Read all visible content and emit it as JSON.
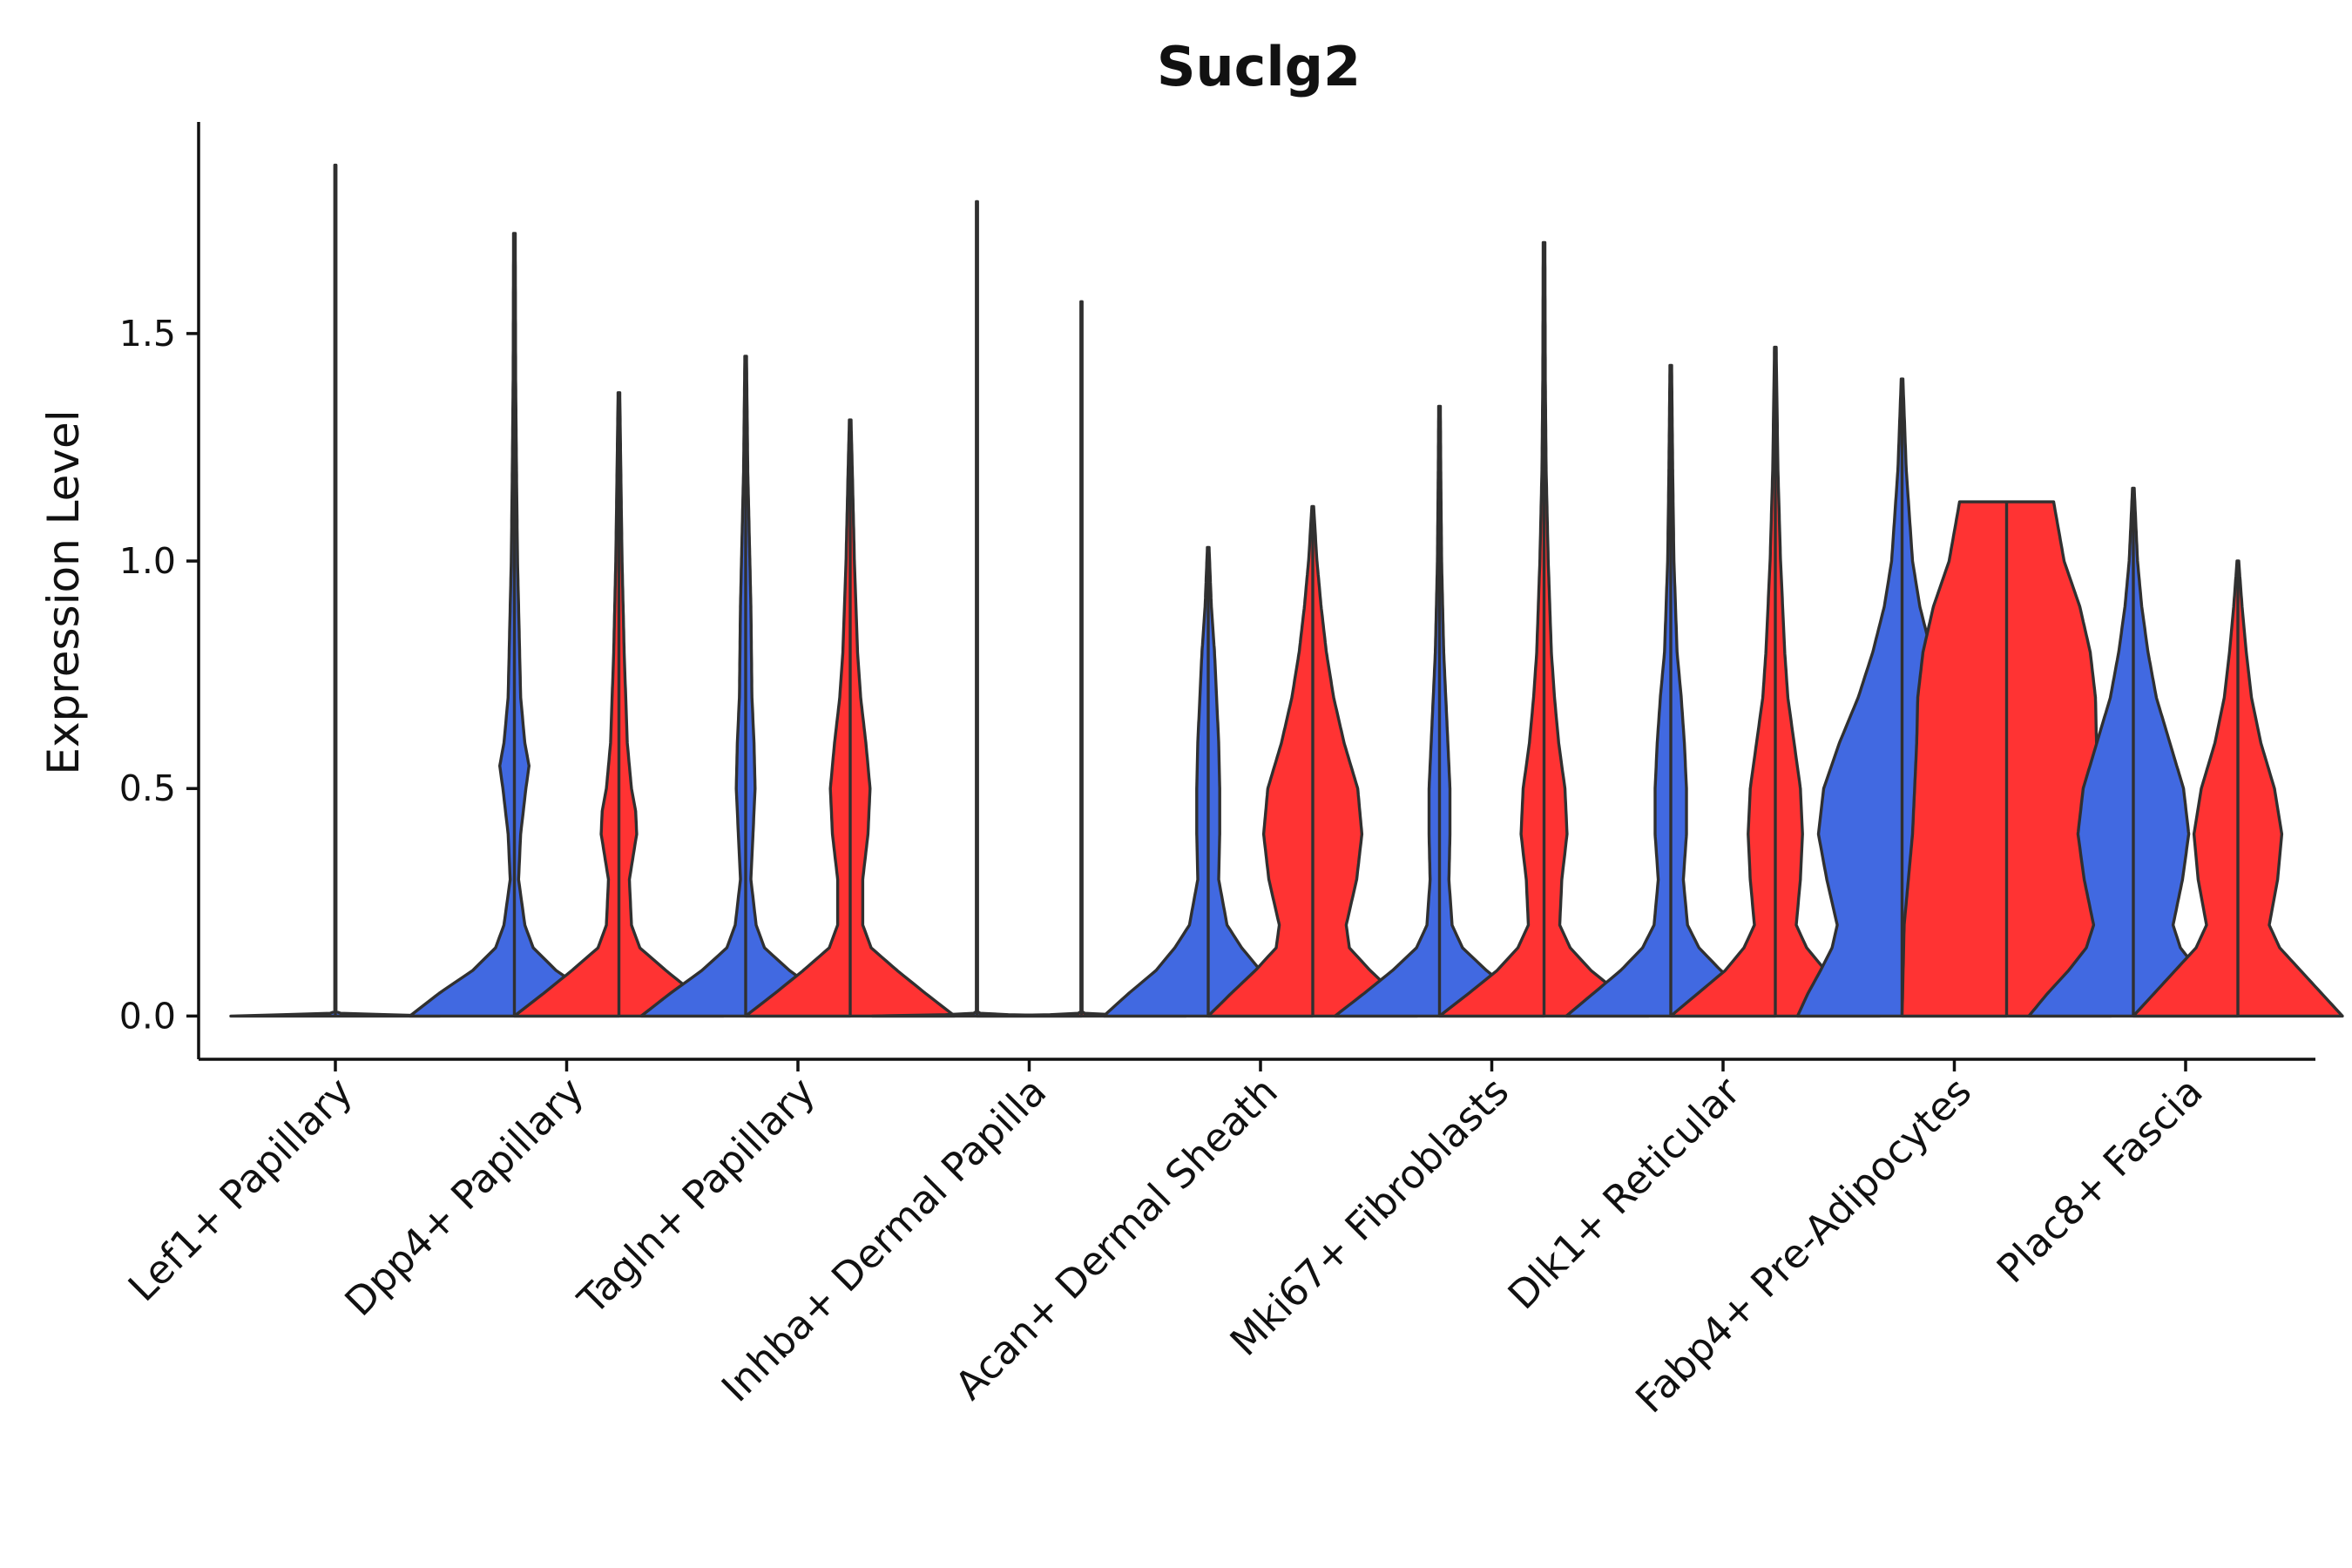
{
  "chart_data": {
    "type": "violin",
    "title": "Suclg2",
    "xlabel": "",
    "ylabel": "Expression Level",
    "ylim": [
      -0.095,
      1.965
    ],
    "yticks": [
      0.0,
      0.5,
      1.0,
      1.5
    ],
    "ytick_labels": [
      "0.0",
      "0.5",
      "1.0",
      "1.5"
    ],
    "grid": false,
    "legend": "none",
    "colors": {
      "group_a": "#4169E1",
      "group_b": "#FF3333",
      "outline": "#303030"
    },
    "categories": [
      "Lef1+ Papillary",
      "Dpp4+ Papillary",
      "Tagln+ Papillary",
      "Inhba+ Dermal Papilla",
      "Acan+ Dermal Sheath",
      "Mki67+ Fibroblasts",
      "Dlk1+ Reticular",
      "Fabp4+ Pre-Adipocytes",
      "Plac8+ Fascia"
    ],
    "violins": [
      {
        "category": "Lef1+ Papillary",
        "split": false,
        "max": 1.87,
        "density": [
          [
            0,
            1
          ],
          [
            0.003,
            0.5
          ],
          [
            0.006,
            0.05
          ],
          [
            0.01,
            0.006
          ],
          [
            1.87,
            0.006
          ]
        ]
      },
      {
        "category": "Dpp4+ Papillary",
        "split": true,
        "left": {
          "max": 1.72,
          "density": [
            [
              0,
              1
            ],
            [
              0.05,
              0.72
            ],
            [
              0.1,
              0.4
            ],
            [
              0.15,
              0.18
            ],
            [
              0.2,
              0.1
            ],
            [
              0.3,
              0.04
            ],
            [
              0.4,
              0.06
            ],
            [
              0.5,
              0.11
            ],
            [
              0.55,
              0.14
            ],
            [
              0.6,
              0.1
            ],
            [
              0.7,
              0.06
            ],
            [
              0.8,
              0.05
            ],
            [
              1.0,
              0.03
            ],
            [
              1.2,
              0.02
            ],
            [
              1.4,
              0.012
            ],
            [
              1.72,
              0.008
            ]
          ]
        },
        "right": {
          "max": 1.37,
          "density": [
            [
              0,
              1
            ],
            [
              0.05,
              0.72
            ],
            [
              0.1,
              0.45
            ],
            [
              0.15,
              0.2
            ],
            [
              0.2,
              0.12
            ],
            [
              0.3,
              0.1
            ],
            [
              0.4,
              0.17
            ],
            [
              0.45,
              0.16
            ],
            [
              0.5,
              0.12
            ],
            [
              0.6,
              0.08
            ],
            [
              0.8,
              0.05
            ],
            [
              1.0,
              0.03
            ],
            [
              1.2,
              0.018
            ],
            [
              1.37,
              0.008
            ]
          ]
        }
      },
      {
        "category": "Tagln+ Papillary",
        "split": true,
        "left": {
          "max": 1.45,
          "density": [
            [
              0,
              1
            ],
            [
              0.05,
              0.72
            ],
            [
              0.1,
              0.42
            ],
            [
              0.15,
              0.18
            ],
            [
              0.2,
              0.1
            ],
            [
              0.3,
              0.05
            ],
            [
              0.4,
              0.07
            ],
            [
              0.5,
              0.09
            ],
            [
              0.6,
              0.08
            ],
            [
              0.7,
              0.06
            ],
            [
              0.9,
              0.05
            ],
            [
              1.0,
              0.04
            ],
            [
              1.2,
              0.02
            ],
            [
              1.45,
              0.008
            ]
          ]
        },
        "right": {
          "max": 1.31,
          "density": [
            [
              0,
              1
            ],
            [
              0.05,
              0.72
            ],
            [
              0.1,
              0.45
            ],
            [
              0.15,
              0.2
            ],
            [
              0.2,
              0.12
            ],
            [
              0.3,
              0.12
            ],
            [
              0.4,
              0.17
            ],
            [
              0.5,
              0.19
            ],
            [
              0.6,
              0.15
            ],
            [
              0.7,
              0.1
            ],
            [
              0.8,
              0.07
            ],
            [
              1.0,
              0.04
            ],
            [
              1.2,
              0.02
            ],
            [
              1.31,
              0.008
            ]
          ]
        }
      },
      {
        "category": "Inhba+ Dermal Papilla",
        "split": true,
        "left": {
          "max": 1.79,
          "density": [
            [
              0,
              1
            ],
            [
              0.003,
              0.3
            ],
            [
              0.006,
              0.03
            ],
            [
              0.01,
              0.006
            ],
            [
              1.79,
              0.006
            ]
          ]
        },
        "right": {
          "max": 1.57,
          "density": [
            [
              0,
              1
            ],
            [
              0.003,
              0.3
            ],
            [
              0.006,
              0.03
            ],
            [
              0.01,
              0.006
            ],
            [
              1.57,
              0.006
            ]
          ]
        }
      },
      {
        "category": "Acan+ Dermal Sheath",
        "split": true,
        "left": {
          "max": 1.03,
          "density": [
            [
              0,
              1
            ],
            [
              0.05,
              0.76
            ],
            [
              0.1,
              0.5
            ],
            [
              0.15,
              0.32
            ],
            [
              0.2,
              0.18
            ],
            [
              0.3,
              0.1
            ],
            [
              0.4,
              0.11
            ],
            [
              0.5,
              0.11
            ],
            [
              0.6,
              0.1
            ],
            [
              0.7,
              0.08
            ],
            [
              0.8,
              0.06
            ],
            [
              0.9,
              0.03
            ],
            [
              1.03,
              0.008
            ]
          ]
        },
        "right": {
          "max": 1.12,
          "density": [
            [
              0,
              1
            ],
            [
              0.05,
              0.78
            ],
            [
              0.1,
              0.55
            ],
            [
              0.15,
              0.35
            ],
            [
              0.2,
              0.32
            ],
            [
              0.3,
              0.42
            ],
            [
              0.4,
              0.47
            ],
            [
              0.5,
              0.43
            ],
            [
              0.6,
              0.3
            ],
            [
              0.7,
              0.2
            ],
            [
              0.8,
              0.13
            ],
            [
              0.9,
              0.08
            ],
            [
              1.0,
              0.04
            ],
            [
              1.12,
              0.008
            ]
          ]
        }
      },
      {
        "category": "Mki67+ Fibroblasts",
        "split": true,
        "left": {
          "max": 1.34,
          "density": [
            [
              0,
              1
            ],
            [
              0.05,
              0.72
            ],
            [
              0.1,
              0.45
            ],
            [
              0.15,
              0.22
            ],
            [
              0.2,
              0.12
            ],
            [
              0.3,
              0.09
            ],
            [
              0.4,
              0.1
            ],
            [
              0.5,
              0.1
            ],
            [
              0.6,
              0.08
            ],
            [
              0.7,
              0.06
            ],
            [
              0.8,
              0.04
            ],
            [
              1.0,
              0.02
            ],
            [
              1.2,
              0.012
            ],
            [
              1.34,
              0.008
            ]
          ]
        },
        "right": {
          "max": 1.7,
          "density": [
            [
              0,
              1
            ],
            [
              0.05,
              0.72
            ],
            [
              0.1,
              0.45
            ],
            [
              0.15,
              0.25
            ],
            [
              0.2,
              0.15
            ],
            [
              0.3,
              0.17
            ],
            [
              0.4,
              0.22
            ],
            [
              0.5,
              0.2
            ],
            [
              0.6,
              0.14
            ],
            [
              0.7,
              0.1
            ],
            [
              0.8,
              0.07
            ],
            [
              1.0,
              0.04
            ],
            [
              1.2,
              0.02
            ],
            [
              1.4,
              0.012
            ],
            [
              1.7,
              0.008
            ]
          ]
        }
      },
      {
        "category": "Dlk1+ Reticular",
        "split": true,
        "left": {
          "max": 1.43,
          "density": [
            [
              0,
              1
            ],
            [
              0.05,
              0.74
            ],
            [
              0.1,
              0.48
            ],
            [
              0.15,
              0.27
            ],
            [
              0.2,
              0.16
            ],
            [
              0.3,
              0.12
            ],
            [
              0.4,
              0.15
            ],
            [
              0.5,
              0.15
            ],
            [
              0.6,
              0.13
            ],
            [
              0.7,
              0.1
            ],
            [
              0.8,
              0.06
            ],
            [
              1.0,
              0.03
            ],
            [
              1.2,
              0.018
            ],
            [
              1.43,
              0.008
            ]
          ]
        },
        "right": {
          "max": 1.47,
          "density": [
            [
              0,
              1
            ],
            [
              0.05,
              0.74
            ],
            [
              0.1,
              0.48
            ],
            [
              0.15,
              0.3
            ],
            [
              0.2,
              0.2
            ],
            [
              0.3,
              0.24
            ],
            [
              0.4,
              0.26
            ],
            [
              0.5,
              0.24
            ],
            [
              0.6,
              0.18
            ],
            [
              0.7,
              0.12
            ],
            [
              0.8,
              0.09
            ],
            [
              1.0,
              0.05
            ],
            [
              1.2,
              0.025
            ],
            [
              1.47,
              0.008
            ]
          ]
        }
      },
      {
        "category": "Fabp4+ Pre-Adipocytes",
        "split": true,
        "left": {
          "max": 1.4,
          "density": [
            [
              0,
              1
            ],
            [
              0.05,
              0.9
            ],
            [
              0.1,
              0.78
            ],
            [
              0.15,
              0.67
            ],
            [
              0.2,
              0.62
            ],
            [
              0.3,
              0.72
            ],
            [
              0.4,
              0.8
            ],
            [
              0.5,
              0.75
            ],
            [
              0.6,
              0.6
            ],
            [
              0.7,
              0.42
            ],
            [
              0.8,
              0.28
            ],
            [
              0.9,
              0.17
            ],
            [
              1.0,
              0.1
            ],
            [
              1.2,
              0.04
            ],
            [
              1.4,
              0.008
            ]
          ]
        },
        "right": {
          "max": 1.13,
          "density": [
            [
              0,
              1
            ],
            [
              0.2,
              0.98
            ],
            [
              0.4,
              0.9
            ],
            [
              0.6,
              0.86
            ],
            [
              0.7,
              0.85
            ],
            [
              0.8,
              0.8
            ],
            [
              0.9,
              0.7
            ],
            [
              1.0,
              0.55
            ],
            [
              1.13,
              0.45
            ]
          ]
        }
      },
      {
        "category": "Plac8+ Fascia",
        "split": true,
        "left": {
          "max": 1.16,
          "density": [
            [
              0,
              1
            ],
            [
              0.05,
              0.82
            ],
            [
              0.1,
              0.62
            ],
            [
              0.15,
              0.45
            ],
            [
              0.2,
              0.38
            ],
            [
              0.3,
              0.47
            ],
            [
              0.4,
              0.53
            ],
            [
              0.5,
              0.48
            ],
            [
              0.6,
              0.35
            ],
            [
              0.7,
              0.22
            ],
            [
              0.8,
              0.14
            ],
            [
              0.9,
              0.08
            ],
            [
              1.0,
              0.04
            ],
            [
              1.16,
              0.008
            ]
          ]
        },
        "right": {
          "max": 1.0,
          "density": [
            [
              0,
              1
            ],
            [
              0.05,
              0.8
            ],
            [
              0.1,
              0.6
            ],
            [
              0.15,
              0.4
            ],
            [
              0.2,
              0.3
            ],
            [
              0.3,
              0.38
            ],
            [
              0.4,
              0.42
            ],
            [
              0.5,
              0.35
            ],
            [
              0.6,
              0.22
            ],
            [
              0.7,
              0.13
            ],
            [
              0.8,
              0.08
            ],
            [
              0.9,
              0.04
            ],
            [
              1.0,
              0.008
            ]
          ]
        }
      }
    ]
  }
}
